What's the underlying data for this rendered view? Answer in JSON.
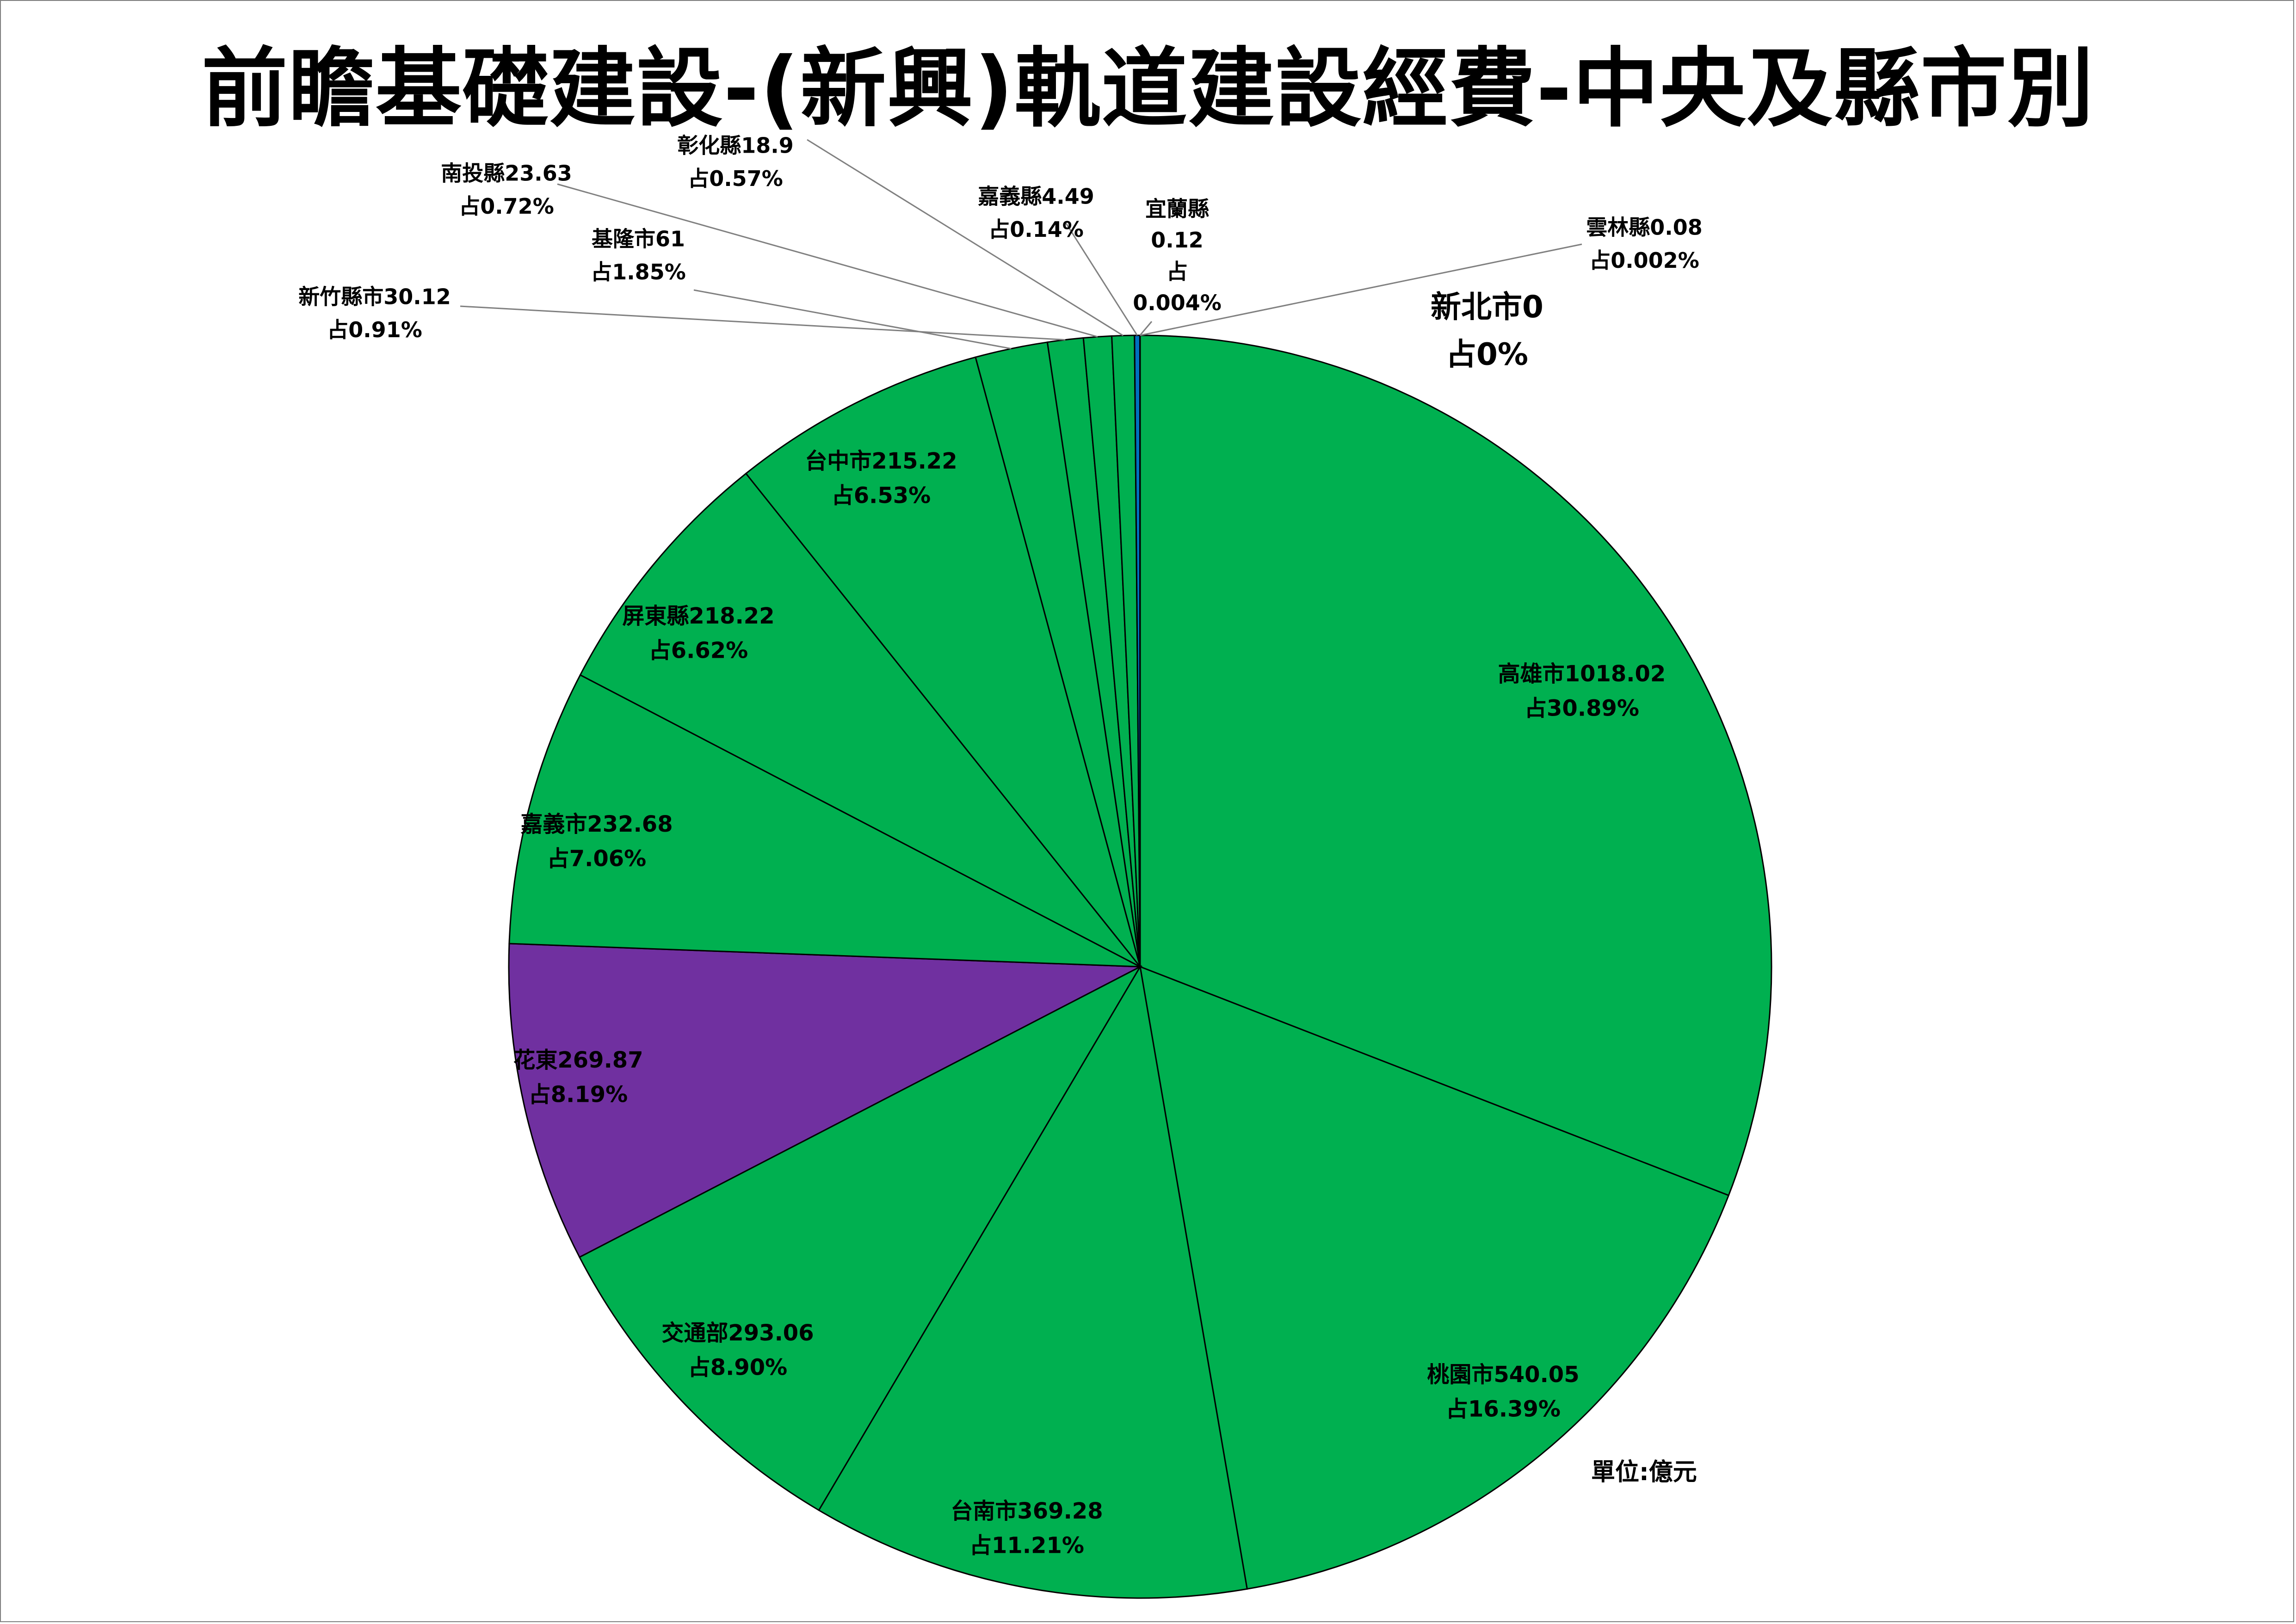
{
  "chart_data": {
    "type": "pie",
    "title": "前瞻基礎建設-(新興)軌道建設經費-中央及縣市別",
    "unit_note": "單位:億元",
    "colors": {
      "default": "#00b050",
      "花東": "#7030a0",
      "嘉義縣": "#0070c0",
      "outline": "#000000",
      "leader": "#808080"
    },
    "slices": [
      {
        "name": "高雄市",
        "value": 1018.02,
        "value_label": "1018.02",
        "percent_label": "占30.89%",
        "color": "#00b050"
      },
      {
        "name": "桃園市",
        "value": 540.05,
        "value_label": "540.05",
        "percent_label": "占16.39%",
        "color": "#00b050"
      },
      {
        "name": "台南市",
        "value": 369.28,
        "value_label": "369.28",
        "percent_label": "占11.21%",
        "color": "#00b050"
      },
      {
        "name": "交通部",
        "value": 293.06,
        "value_label": "293.06",
        "percent_label": "占8.90%",
        "color": "#00b050"
      },
      {
        "name": "花東",
        "value": 269.87,
        "value_label": "269.87",
        "percent_label": "占8.19%",
        "color": "#7030a0"
      },
      {
        "name": "嘉義市",
        "value": 232.68,
        "value_label": "232.68",
        "percent_label": "占7.06%",
        "color": "#00b050"
      },
      {
        "name": "屏東縣",
        "value": 218.22,
        "value_label": "218.22",
        "percent_label": "占6.62%",
        "color": "#00b050"
      },
      {
        "name": "台中市",
        "value": 215.22,
        "value_label": "215.22",
        "percent_label": "占6.53%",
        "color": "#00b050"
      },
      {
        "name": "基隆市",
        "value": 61,
        "value_label": "61",
        "percent_label": "占1.85%",
        "color": "#00b050"
      },
      {
        "name": "新竹縣市",
        "value": 30.12,
        "value_label": "30.12",
        "percent_label": "占0.91%",
        "color": "#00b050"
      },
      {
        "name": "南投縣",
        "value": 23.63,
        "value_label": "23.63",
        "percent_label": "占0.72%",
        "color": "#00b050"
      },
      {
        "name": "彰化縣",
        "value": 18.9,
        "value_label": "18.9",
        "percent_label": "占0.57%",
        "color": "#00b050"
      },
      {
        "name": "嘉義縣",
        "value": 4.49,
        "value_label": "4.49",
        "percent_label": "占0.14%",
        "color": "#0070c0"
      },
      {
        "name": "宜蘭縣",
        "value": 0.12,
        "value_label": "0.12",
        "percent_label": "占0.004%",
        "color": "#00b050"
      },
      {
        "name": "雲林縣",
        "value": 0.08,
        "value_label": "0.08",
        "percent_label": "占0.002%",
        "color": "#00b050"
      },
      {
        "name": "新北市",
        "value": 0,
        "value_label": "0",
        "percent_label": "占0%",
        "color": "#00b050"
      }
    ]
  }
}
